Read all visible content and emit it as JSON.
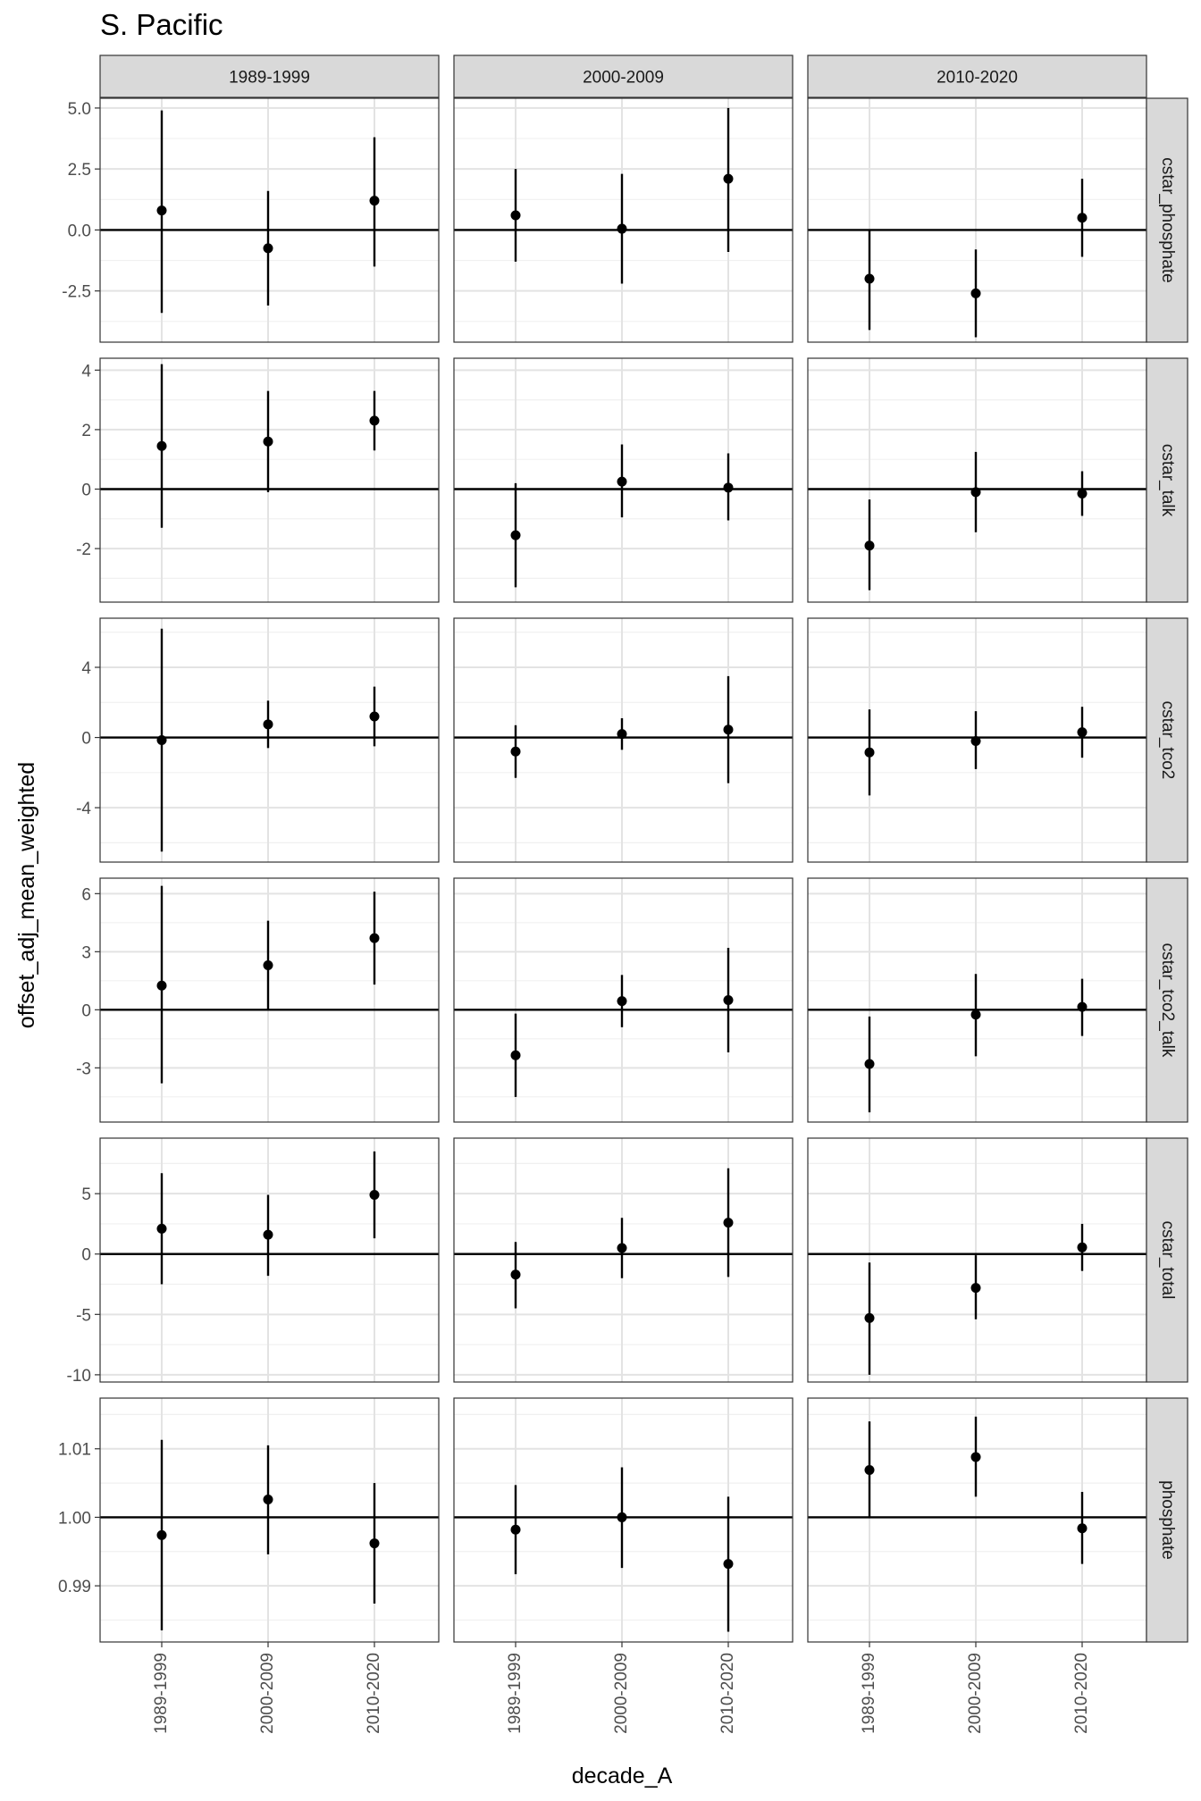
{
  "chart_data": {
    "type": "scatter",
    "title": "S. Pacific",
    "xlabel": "decade_A",
    "ylabel": "offset_adj_mean_weighted",
    "categories": [
      "1989-1999",
      "2000-2009",
      "2010-2020"
    ],
    "column_facets": [
      "1989-1999",
      "2000-2009",
      "2010-2020"
    ],
    "grid": true,
    "reference_line_y": 0,
    "rows": [
      {
        "facet": "cstar_phosphate",
        "ylim": [
          -4.6,
          5.4
        ],
        "yticks": [
          -2.5,
          0,
          2.5,
          5
        ],
        "ytick_labels": [
          "-2.5",
          "0.0",
          "2.5",
          "5.0"
        ],
        "hline": 0,
        "panels": [
          [
            {
              "x": "1989-1999",
              "y": 0.8,
              "ymin": -3.4,
              "ymax": 4.9
            },
            {
              "x": "2000-2009",
              "y": -0.75,
              "ymin": -3.1,
              "ymax": 1.6
            },
            {
              "x": "2010-2020",
              "y": 1.2,
              "ymin": -1.5,
              "ymax": 3.8
            }
          ],
          [
            {
              "x": "1989-1999",
              "y": 0.6,
              "ymin": -1.3,
              "ymax": 2.5
            },
            {
              "x": "2000-2009",
              "y": 0.05,
              "ymin": -2.2,
              "ymax": 2.3
            },
            {
              "x": "2010-2020",
              "y": 2.1,
              "ymin": -0.9,
              "ymax": 5.0
            }
          ],
          [
            {
              "x": "1989-1999",
              "y": -2.0,
              "ymin": -4.1,
              "ymax": 0.0
            },
            {
              "x": "2000-2009",
              "y": -2.6,
              "ymin": -4.4,
              "ymax": -0.8
            },
            {
              "x": "2010-2020",
              "y": 0.5,
              "ymin": -1.1,
              "ymax": 2.1
            }
          ]
        ]
      },
      {
        "facet": "cstar_talk",
        "ylim": [
          -3.8,
          4.4
        ],
        "yticks": [
          -2,
          0,
          2,
          4
        ],
        "ytick_labels": [
          "-2",
          "0",
          "2",
          "4"
        ],
        "hline": 0,
        "panels": [
          [
            {
              "x": "1989-1999",
              "y": 1.45,
              "ymin": -1.3,
              "ymax": 4.2
            },
            {
              "x": "2000-2009",
              "y": 1.6,
              "ymin": -0.1,
              "ymax": 3.3
            },
            {
              "x": "2010-2020",
              "y": 2.3,
              "ymin": 1.3,
              "ymax": 3.3
            }
          ],
          [
            {
              "x": "1989-1999",
              "y": -1.55,
              "ymin": -3.3,
              "ymax": 0.2
            },
            {
              "x": "2000-2009",
              "y": 0.25,
              "ymin": -0.95,
              "ymax": 1.5
            },
            {
              "x": "2010-2020",
              "y": 0.05,
              "ymin": -1.05,
              "ymax": 1.2
            }
          ],
          [
            {
              "x": "1989-1999",
              "y": -1.9,
              "ymin": -3.4,
              "ymax": -0.35
            },
            {
              "x": "2000-2009",
              "y": -0.1,
              "ymin": -1.45,
              "ymax": 1.25
            },
            {
              "x": "2010-2020",
              "y": -0.15,
              "ymin": -0.9,
              "ymax": 0.6
            }
          ]
        ]
      },
      {
        "facet": "cstar_tco2",
        "ylim": [
          -7.1,
          6.8
        ],
        "yticks": [
          -4,
          0,
          4
        ],
        "ytick_labels": [
          "-4",
          "0",
          "4"
        ],
        "hline": 0,
        "panels": [
          [
            {
              "x": "1989-1999",
              "y": -0.15,
              "ymin": -6.5,
              "ymax": 6.2
            },
            {
              "x": "2000-2009",
              "y": 0.75,
              "ymin": -0.6,
              "ymax": 2.1
            },
            {
              "x": "2010-2020",
              "y": 1.2,
              "ymin": -0.5,
              "ymax": 2.9
            }
          ],
          [
            {
              "x": "1989-1999",
              "y": -0.8,
              "ymin": -2.3,
              "ymax": 0.7
            },
            {
              "x": "2000-2009",
              "y": 0.2,
              "ymin": -0.7,
              "ymax": 1.1
            },
            {
              "x": "2010-2020",
              "y": 0.45,
              "ymin": -2.6,
              "ymax": 3.5
            }
          ],
          [
            {
              "x": "1989-1999",
              "y": -0.85,
              "ymin": -3.3,
              "ymax": 1.6
            },
            {
              "x": "2000-2009",
              "y": -0.2,
              "ymin": -1.8,
              "ymax": 1.5
            },
            {
              "x": "2010-2020",
              "y": 0.3,
              "ymin": -1.15,
              "ymax": 1.75
            }
          ]
        ]
      },
      {
        "facet": "cstar_tco2_talk",
        "ylim": [
          -5.8,
          6.8
        ],
        "yticks": [
          -3,
          0,
          3,
          6
        ],
        "ytick_labels": [
          "-3",
          "0",
          "3",
          "6"
        ],
        "hline": 0,
        "panels": [
          [
            {
              "x": "1989-1999",
              "y": 1.25,
              "ymin": -3.8,
              "ymax": 6.4
            },
            {
              "x": "2000-2009",
              "y": 2.3,
              "ymin": 0.0,
              "ymax": 4.6
            },
            {
              "x": "2010-2020",
              "y": 3.7,
              "ymin": 1.3,
              "ymax": 6.1
            }
          ],
          [
            {
              "x": "1989-1999",
              "y": -2.35,
              "ymin": -4.5,
              "ymax": -0.2
            },
            {
              "x": "2000-2009",
              "y": 0.45,
              "ymin": -0.9,
              "ymax": 1.8
            },
            {
              "x": "2010-2020",
              "y": 0.5,
              "ymin": -2.2,
              "ymax": 3.2
            }
          ],
          [
            {
              "x": "1989-1999",
              "y": -2.8,
              "ymin": -5.3,
              "ymax": -0.35
            },
            {
              "x": "2000-2009",
              "y": -0.25,
              "ymin": -2.4,
              "ymax": 1.85
            },
            {
              "x": "2010-2020",
              "y": 0.15,
              "ymin": -1.35,
              "ymax": 1.6
            }
          ]
        ]
      },
      {
        "facet": "cstar_total",
        "ylim": [
          -10.6,
          9.6
        ],
        "yticks": [
          -10,
          -5,
          0,
          5
        ],
        "ytick_labels": [
          "-10",
          "-5",
          "0",
          "5"
        ],
        "hline": 0,
        "panels": [
          [
            {
              "x": "1989-1999",
              "y": 2.1,
              "ymin": -2.5,
              "ymax": 6.7
            },
            {
              "x": "2000-2009",
              "y": 1.6,
              "ymin": -1.8,
              "ymax": 4.9
            },
            {
              "x": "2010-2020",
              "y": 4.9,
              "ymin": 1.3,
              "ymax": 8.5
            }
          ],
          [
            {
              "x": "1989-1999",
              "y": -1.7,
              "ymin": -4.5,
              "ymax": 1.0
            },
            {
              "x": "2000-2009",
              "y": 0.5,
              "ymin": -2.0,
              "ymax": 3.0
            },
            {
              "x": "2010-2020",
              "y": 2.6,
              "ymin": -1.9,
              "ymax": 7.1
            }
          ],
          [
            {
              "x": "1989-1999",
              "y": -5.3,
              "ymin": -10.0,
              "ymax": -0.7
            },
            {
              "x": "2000-2009",
              "y": -2.8,
              "ymin": -5.4,
              "ymax": -0.1
            },
            {
              "x": "2010-2020",
              "y": 0.55,
              "ymin": -1.4,
              "ymax": 2.5
            }
          ]
        ]
      },
      {
        "facet": "phosphate",
        "ylim": [
          0.9818,
          1.0174
        ],
        "yticks": [
          0.99,
          1.0,
          1.01
        ],
        "ytick_labels": [
          "0.99",
          "1.00",
          "1.01"
        ],
        "hline": 1.0,
        "panels": [
          [
            {
              "x": "1989-1999",
              "y": 0.9974,
              "ymin": 0.9835,
              "ymax": 1.0113
            },
            {
              "x": "2000-2009",
              "y": 1.0026,
              "ymin": 0.9946,
              "ymax": 1.0105
            },
            {
              "x": "2010-2020",
              "y": 0.9962,
              "ymin": 0.9874,
              "ymax": 1.005
            }
          ],
          [
            {
              "x": "1989-1999",
              "y": 0.9982,
              "ymin": 0.9917,
              "ymax": 1.0047
            },
            {
              "x": "2000-2009",
              "y": 1.0,
              "ymin": 0.9926,
              "ymax": 1.0073
            },
            {
              "x": "2010-2020",
              "y": 0.9932,
              "ymin": 0.9833,
              "ymax": 1.003
            }
          ],
          [
            {
              "x": "1989-1999",
              "y": 1.0069,
              "ymin": 1.0,
              "ymax": 1.014
            },
            {
              "x": "2000-2009",
              "y": 1.0088,
              "ymin": 1.003,
              "ymax": 1.0147
            },
            {
              "x": "2010-2020",
              "y": 0.9984,
              "ymin": 0.9932,
              "ymax": 1.0037
            }
          ]
        ]
      }
    ]
  }
}
